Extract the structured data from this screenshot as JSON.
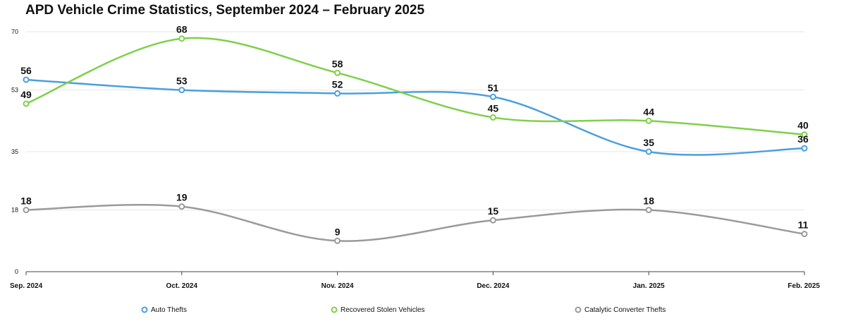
{
  "chart_data": {
    "type": "line",
    "title": "APD Vehicle Crime Statistics, September 2024 – February 2025",
    "categories": [
      "Sep. 2024",
      "Oct. 2024",
      "Nov. 2024",
      "Dec. 2024",
      "Jan. 2025",
      "Feb. 2025"
    ],
    "yticks": [
      0,
      18,
      35,
      53,
      70
    ],
    "ylim": [
      0,
      70
    ],
    "grid": true,
    "legend": "bottom",
    "series": [
      {
        "name": "Auto Thefts",
        "color": "#4a9fe0",
        "values": [
          56,
          53,
          52,
          51,
          35,
          36
        ],
        "labels": [
          "56",
          "53",
          "52",
          "51",
          "35",
          "36"
        ]
      },
      {
        "name": "Recovered Stolen Vehicles",
        "color": "#7ed04b",
        "values": [
          49,
          68,
          58,
          45,
          44,
          40
        ],
        "labels": [
          "49",
          "68",
          "58",
          "45",
          "44",
          "40"
        ]
      },
      {
        "name": "Catalytic Converter Thefts",
        "color": "#9a9a9a",
        "values": [
          18,
          19,
          9,
          15,
          18,
          11
        ],
        "labels": [
          "18",
          "19",
          "9",
          "15",
          "18",
          "11"
        ]
      }
    ]
  }
}
